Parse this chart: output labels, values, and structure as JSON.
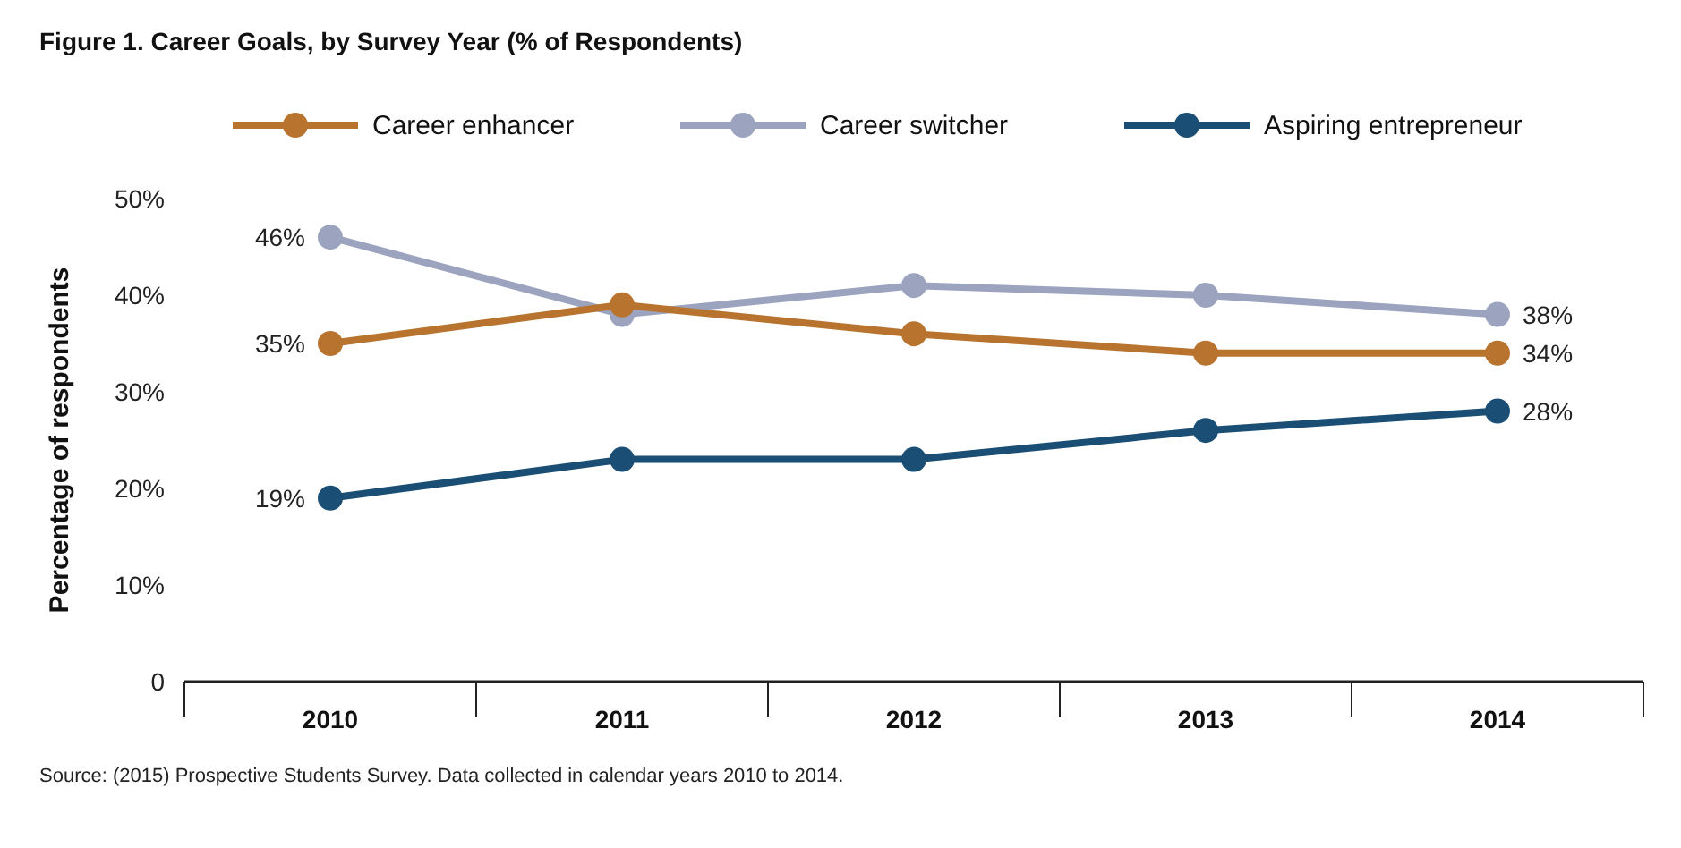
{
  "chart_data": {
    "type": "line",
    "title": "Figure 1. Career Goals, by Survey Year (% of Respondents)",
    "ylabel": "Percentage of respondents",
    "categories": [
      "2010",
      "2011",
      "2012",
      "2013",
      "2014"
    ],
    "series": [
      {
        "name": "Career enhancer",
        "color": "#b8732e",
        "values": [
          35,
          39,
          36,
          34,
          34
        ],
        "value_labels": [
          "35%",
          null,
          null,
          null,
          "34%"
        ]
      },
      {
        "name": "Career switcher",
        "color": "#9ba3bf",
        "values": [
          46,
          38,
          41,
          40,
          38
        ],
        "value_labels": [
          "46%",
          null,
          null,
          null,
          "38%"
        ]
      },
      {
        "name": "Aspiring entrepreneur",
        "color": "#1a4e74",
        "values": [
          19,
          23,
          23,
          26,
          28
        ],
        "value_labels": [
          "19%",
          null,
          null,
          null,
          "28%"
        ]
      }
    ],
    "ylim": [
      0,
      50
    ],
    "yticks": [
      0,
      {
        "value": 10,
        "label": "10%"
      },
      {
        "value": 20,
        "label": "20%"
      },
      {
        "value": 30,
        "label": "30%"
      },
      {
        "value": 40,
        "label": "40%"
      },
      {
        "value": 50,
        "label": "50%"
      }
    ],
    "grid": false,
    "legend": "top",
    "marker": "circle",
    "line_style": "solid",
    "annotations": [
      "Source: (2015) Prospective Students Survey. Data collected in calendar years 2010 to 2014."
    ]
  }
}
